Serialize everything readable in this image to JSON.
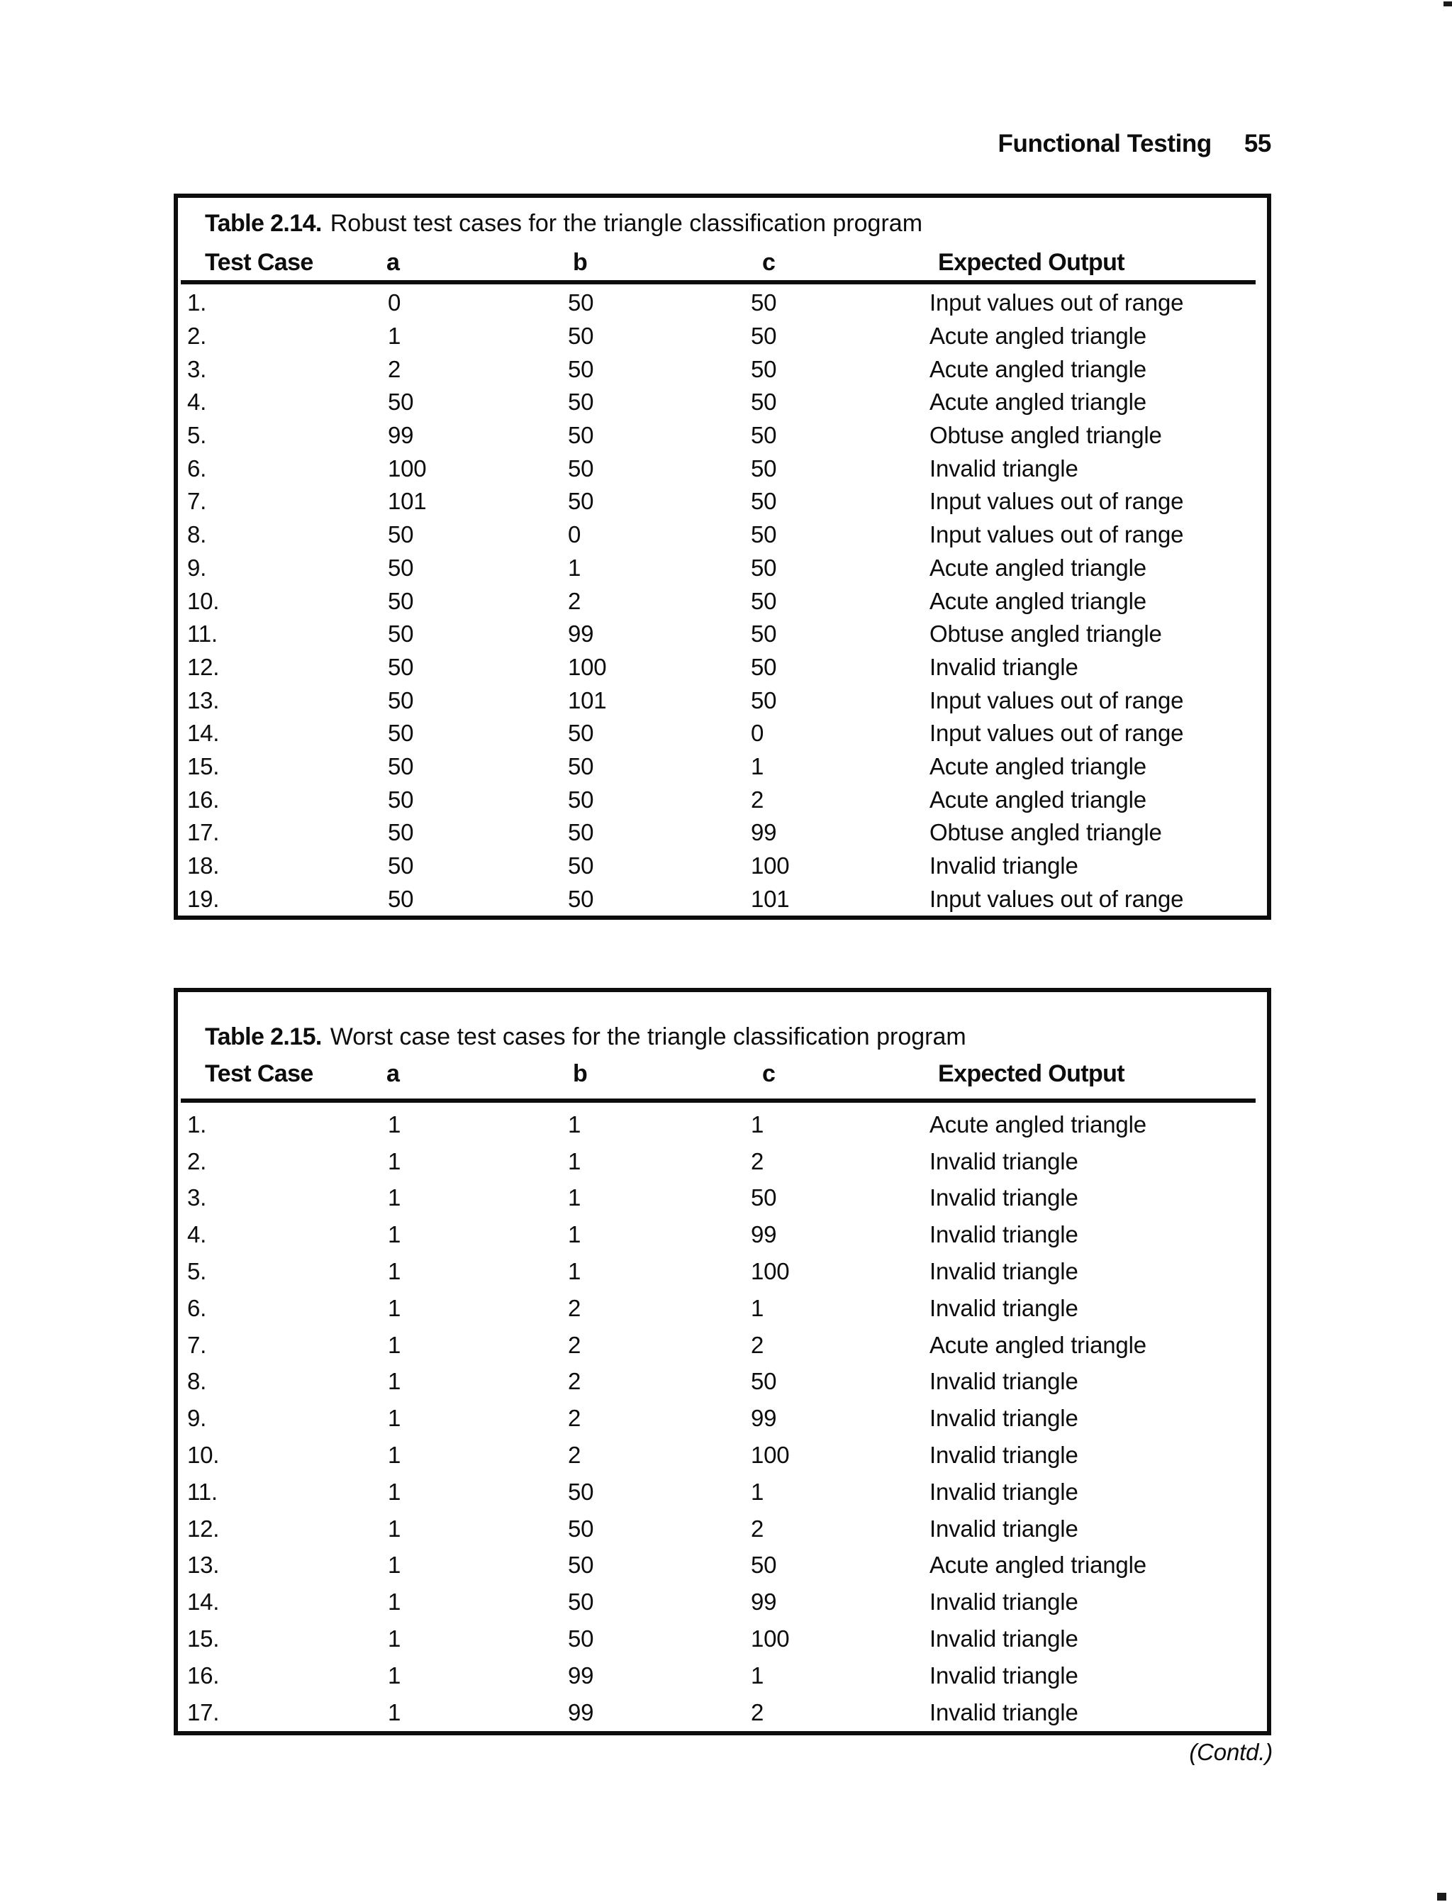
{
  "page": {
    "header": {
      "section_title": "Functional Testing",
      "page_number": "55"
    },
    "contd_note": "(Contd.)"
  },
  "tables": [
    {
      "label": "Table 2.14.",
      "caption": "Robust test cases for the triangle classification program",
      "columns": [
        "Test Case",
        "a",
        "b",
        "c",
        "Expected Output"
      ],
      "rows": [
        {
          "test_case": "1.",
          "a": "0",
          "b": "50",
          "c": "50",
          "expected": "Input values out of range"
        },
        {
          "test_case": "2.",
          "a": "1",
          "b": "50",
          "c": "50",
          "expected": "Acute angled triangle"
        },
        {
          "test_case": "3.",
          "a": "2",
          "b": "50",
          "c": "50",
          "expected": "Acute angled triangle"
        },
        {
          "test_case": "4.",
          "a": "50",
          "b": "50",
          "c": "50",
          "expected": "Acute angled triangle"
        },
        {
          "test_case": "5.",
          "a": "99",
          "b": "50",
          "c": "50",
          "expected": "Obtuse angled triangle"
        },
        {
          "test_case": "6.",
          "a": "100",
          "b": "50",
          "c": "50",
          "expected": "Invalid triangle"
        },
        {
          "test_case": "7.",
          "a": "101",
          "b": "50",
          "c": "50",
          "expected": "Input values out of range"
        },
        {
          "test_case": "8.",
          "a": "50",
          "b": "0",
          "c": "50",
          "expected": "Input values out of range"
        },
        {
          "test_case": "9.",
          "a": "50",
          "b": "1",
          "c": "50",
          "expected": "Acute angled triangle"
        },
        {
          "test_case": "10.",
          "a": "50",
          "b": "2",
          "c": "50",
          "expected": "Acute angled triangle"
        },
        {
          "test_case": "11.",
          "a": "50",
          "b": "99",
          "c": "50",
          "expected": "Obtuse angled triangle"
        },
        {
          "test_case": "12.",
          "a": "50",
          "b": "100",
          "c": "50",
          "expected": "Invalid triangle"
        },
        {
          "test_case": "13.",
          "a": "50",
          "b": "101",
          "c": "50",
          "expected": "Input values out of range"
        },
        {
          "test_case": "14.",
          "a": "50",
          "b": "50",
          "c": "0",
          "expected": "Input values out of range"
        },
        {
          "test_case": "15.",
          "a": "50",
          "b": "50",
          "c": "1",
          "expected": "Acute angled triangle"
        },
        {
          "test_case": "16.",
          "a": "50",
          "b": "50",
          "c": "2",
          "expected": "Acute angled triangle"
        },
        {
          "test_case": "17.",
          "a": "50",
          "b": "50",
          "c": "99",
          "expected": "Obtuse angled triangle"
        },
        {
          "test_case": "18.",
          "a": "50",
          "b": "50",
          "c": "100",
          "expected": "Invalid triangle"
        },
        {
          "test_case": "19.",
          "a": "50",
          "b": "50",
          "c": "101",
          "expected": "Input values out of range"
        }
      ]
    },
    {
      "label": "Table 2.15.",
      "caption": "Worst case test cases for the triangle classification program",
      "columns": [
        "Test Case",
        "a",
        "b",
        "c",
        "Expected Output"
      ],
      "rows": [
        {
          "test_case": "1.",
          "a": "1",
          "b": "1",
          "c": "1",
          "expected": "Acute angled triangle"
        },
        {
          "test_case": "2.",
          "a": "1",
          "b": "1",
          "c": "2",
          "expected": "Invalid triangle"
        },
        {
          "test_case": "3.",
          "a": "1",
          "b": "1",
          "c": "50",
          "expected": "Invalid triangle"
        },
        {
          "test_case": "4.",
          "a": "1",
          "b": "1",
          "c": "99",
          "expected": "Invalid triangle"
        },
        {
          "test_case": "5.",
          "a": "1",
          "b": "1",
          "c": "100",
          "expected": "Invalid triangle"
        },
        {
          "test_case": "6.",
          "a": "1",
          "b": "2",
          "c": "1",
          "expected": "Invalid triangle"
        },
        {
          "test_case": "7.",
          "a": "1",
          "b": "2",
          "c": "2",
          "expected": "Acute angled triangle"
        },
        {
          "test_case": "8.",
          "a": "1",
          "b": "2",
          "c": "50",
          "expected": "Invalid triangle"
        },
        {
          "test_case": "9.",
          "a": "1",
          "b": "2",
          "c": "99",
          "expected": "Invalid triangle"
        },
        {
          "test_case": "10.",
          "a": "1",
          "b": "2",
          "c": "100",
          "expected": "Invalid triangle"
        },
        {
          "test_case": "11.",
          "a": "1",
          "b": "50",
          "c": "1",
          "expected": "Invalid triangle"
        },
        {
          "test_case": "12.",
          "a": "1",
          "b": "50",
          "c": "2",
          "expected": "Invalid triangle"
        },
        {
          "test_case": "13.",
          "a": "1",
          "b": "50",
          "c": "50",
          "expected": "Acute angled triangle"
        },
        {
          "test_case": "14.",
          "a": "1",
          "b": "50",
          "c": "99",
          "expected": "Invalid triangle"
        },
        {
          "test_case": "15.",
          "a": "1",
          "b": "50",
          "c": "100",
          "expected": "Invalid triangle"
        },
        {
          "test_case": "16.",
          "a": "1",
          "b": "99",
          "c": "1",
          "expected": "Invalid triangle"
        },
        {
          "test_case": "17.",
          "a": "1",
          "b": "99",
          "c": "2",
          "expected": "Invalid triangle"
        }
      ]
    }
  ]
}
